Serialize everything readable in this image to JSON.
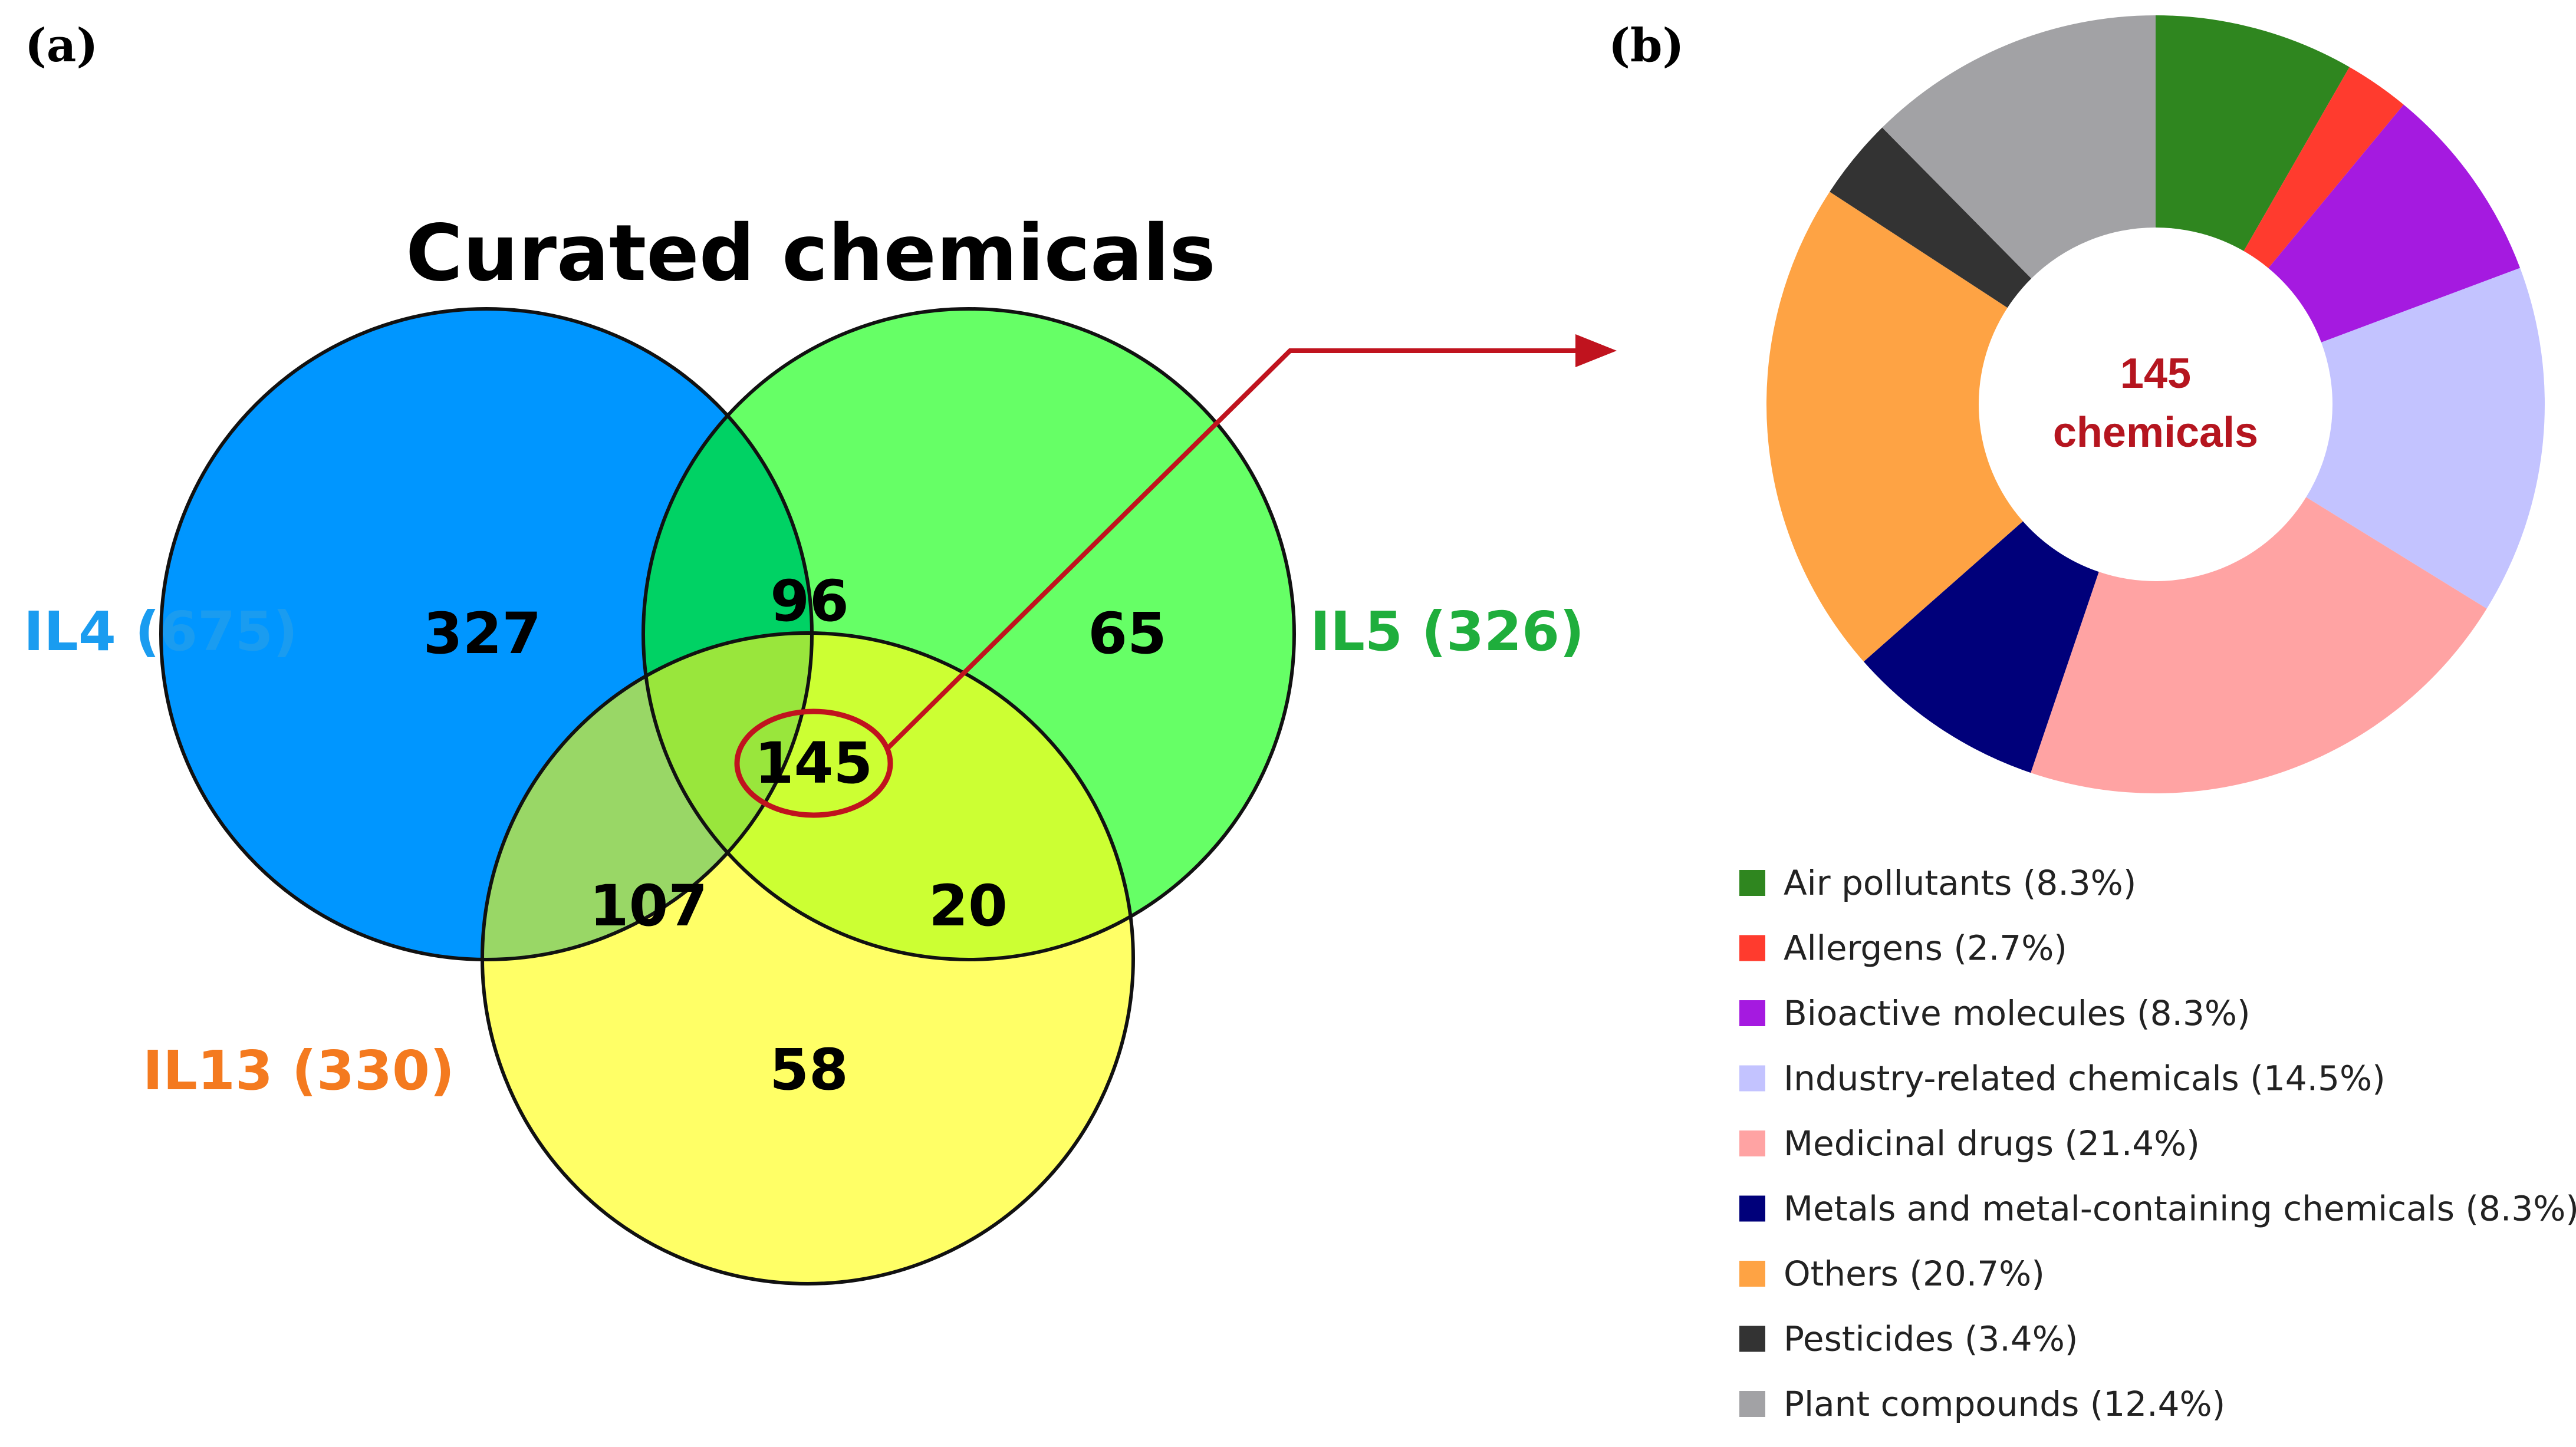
{
  "panel_labels": {
    "a": "(a)",
    "b": "(b)"
  },
  "chart_data": [
    {
      "type": "venn",
      "title": "Curated chemicals",
      "sets": [
        {
          "key": "IL4",
          "label": "IL4 (675)",
          "total": 675,
          "color": "#0096ff",
          "label_color": "#1a9cf0"
        },
        {
          "key": "IL5",
          "label": "IL5 (326)",
          "total": 326,
          "color": "#66ff66",
          "label_color": "#1fae3c"
        },
        {
          "key": "IL13",
          "label": "IL13 (330)",
          "total": 330,
          "color": "#ffff66",
          "label_color": "#f47a1f"
        }
      ],
      "regions": {
        "IL4_only": 327,
        "IL5_only": 65,
        "IL13_only": 58,
        "IL4_IL5": 96,
        "IL4_IL13": 107,
        "IL5_IL13": 20,
        "all": 145
      },
      "region_colors": {
        "IL4_IL5": "#00d264",
        "IL4_IL13": "#99d766",
        "IL5_IL13": "#ccff33",
        "all": "#99e63c"
      },
      "highlight": {
        "region": "all",
        "color": "#c0131e"
      }
    },
    {
      "type": "donut",
      "center_label": [
        "145",
        "chemicals"
      ],
      "center_color": "#b5151f",
      "total": 145,
      "legend_position": "bottom",
      "slices": [
        {
          "label": "Air pollutants (8.3%)",
          "value": 8.3,
          "color": "#2f861f"
        },
        {
          "label": "Allergens (2.7%)",
          "value": 2.7,
          "color": "#ff3b2e"
        },
        {
          "label": "Bioactive molecules (8.3%)",
          "value": 8.3,
          "color": "#a51ae0"
        },
        {
          "label": "Industry-related chemicals (14.5%)",
          "value": 14.5,
          "color": "#c3c3ff"
        },
        {
          "label": "Medicinal drugs (21.4%)",
          "value": 21.4,
          "color": "#ffa3a3"
        },
        {
          "label": "Metals and metal-containing chemicals (8.3%)",
          "value": 8.3,
          "color": "#00007a"
        },
        {
          "label": "Others (20.7%)",
          "value": 20.7,
          "color": "#fea344"
        },
        {
          "label": "Pesticides (3.4%)",
          "value": 3.4,
          "color": "#333333"
        },
        {
          "label": "Plant compounds (12.4%)",
          "value": 12.4,
          "color": "#a2a2a5"
        }
      ]
    }
  ]
}
